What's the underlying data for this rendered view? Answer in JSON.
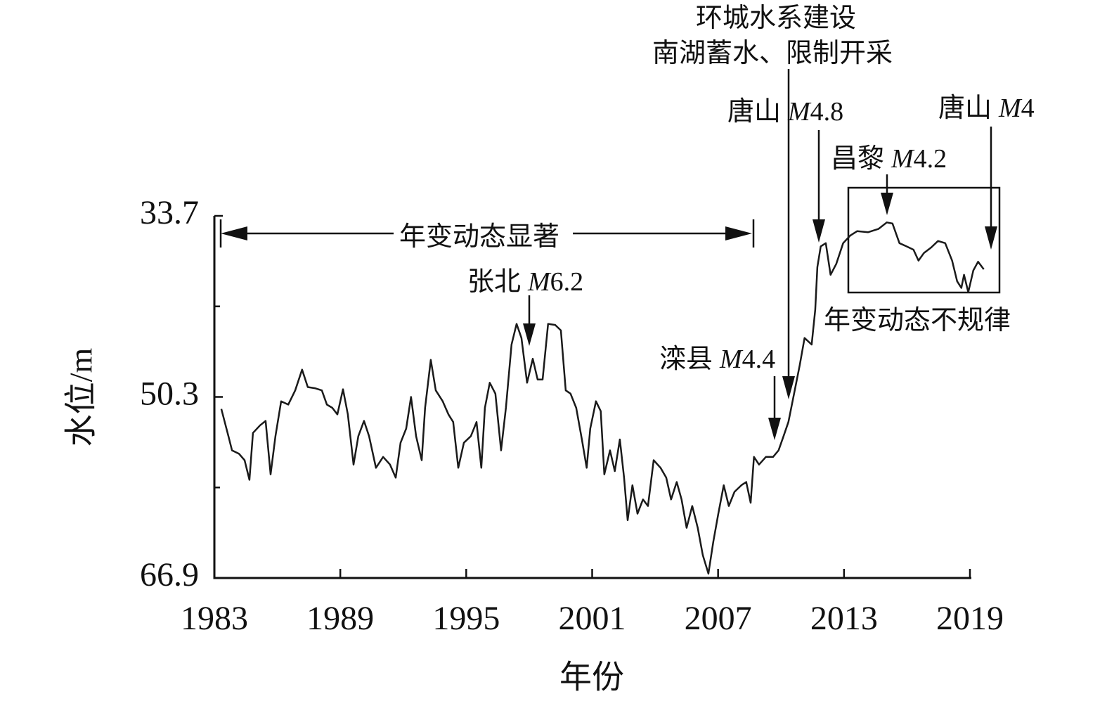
{
  "chart_data": {
    "type": "line",
    "x_label": "年份",
    "y_label": "水位/m",
    "xlim": [
      1983,
      2019
    ],
    "xticks": [
      1983,
      1989,
      1995,
      2001,
      2007,
      2013,
      2019
    ],
    "ylim": [
      33.7,
      66.9
    ],
    "y_inverted": true,
    "yticks": [
      33.7,
      50.3,
      66.9
    ],
    "y_minor_ticks": [
      42,
      58.6
    ],
    "color": "#1a1a1a",
    "x": [
      1983.33,
      1983.67,
      1983.84,
      1984.17,
      1984.44,
      1984.67,
      1984.84,
      1985.18,
      1985.44,
      1985.68,
      1985.91,
      1986.18,
      1986.52,
      1986.85,
      1987.18,
      1987.45,
      1987.79,
      1988.12,
      1988.36,
      1988.62,
      1988.86,
      1989.13,
      1989.36,
      1989.63,
      1989.86,
      1990.13,
      1990.37,
      1990.7,
      1991.04,
      1991.37,
      1991.64,
      1991.87,
      1992.14,
      1992.37,
      1992.61,
      1992.88,
      1993.04,
      1993.31,
      1993.55,
      1993.88,
      1994.15,
      1994.38,
      1994.62,
      1994.89,
      1995.22,
      1995.49,
      1995.72,
      1995.89,
      1996.12,
      1996.39,
      1996.66,
      1996.89,
      1997.16,
      1997.4,
      1997.63,
      1997.9,
      1998.17,
      1998.4,
      1998.64,
      1998.9,
      1999.24,
      1999.51,
      1999.74,
      1999.97,
      2000.24,
      2000.51,
      2000.74,
      2000.91,
      2001.18,
      2001.41,
      2001.58,
      2001.85,
      2002.08,
      2002.32,
      2002.52,
      2002.69,
      2002.92,
      2003.16,
      2003.42,
      2003.66,
      2003.93,
      2004.26,
      2004.53,
      2004.76,
      2005.03,
      2005.26,
      2005.5,
      2005.77,
      2006.03,
      2006.27,
      2006.54,
      2006.77,
      2007.01,
      2007.27,
      2007.51,
      2007.78,
      2008.11,
      2008.34,
      2008.55,
      2008.71,
      2008.95,
      2009.28,
      2009.62,
      2009.88,
      2010.12,
      2010.35,
      2010.62,
      2010.89,
      2011.12,
      2011.46,
      2011.63,
      2011.73,
      2011.89,
      2012.13,
      2012.36,
      2012.63,
      2012.96,
      2013.3,
      2013.63,
      2014.14,
      2014.64,
      2015.04,
      2015.31,
      2015.64,
      2015.98,
      2016.31,
      2016.55,
      2016.81,
      2017.15,
      2017.48,
      2017.82,
      2018.15,
      2018.39,
      2018.59,
      2018.72,
      2018.92,
      2019.16,
      2019.39,
      2019.66
    ],
    "values": [
      51.4,
      53.9,
      55.2,
      55.5,
      56.1,
      57.9,
      53.6,
      52.9,
      52.5,
      57.4,
      53.9,
      50.7,
      51.0,
      49.7,
      47.8,
      49.4,
      49.5,
      49.7,
      51.0,
      51.3,
      51.9,
      49.6,
      51.9,
      56.5,
      53.9,
      52.5,
      53.9,
      56.8,
      55.8,
      56.5,
      57.7,
      54.5,
      53.2,
      50.3,
      53.9,
      56.1,
      51.3,
      46.9,
      49.7,
      50.7,
      51.9,
      52.6,
      56.8,
      54.5,
      53.9,
      52.6,
      56.8,
      51.3,
      49.0,
      50.0,
      55.2,
      51.3,
      45.5,
      43.6,
      44.9,
      49.0,
      46.8,
      48.7,
      48.7,
      43.6,
      43.7,
      44.2,
      49.7,
      50.0,
      51.3,
      54.2,
      56.8,
      53.2,
      50.7,
      51.6,
      57.4,
      55.2,
      57.1,
      54.2,
      57.7,
      61.6,
      58.4,
      61.0,
      59.7,
      60.3,
      56.1,
      56.8,
      57.7,
      59.7,
      58.1,
      59.7,
      62.3,
      60.3,
      62.3,
      64.8,
      66.5,
      63.6,
      61.0,
      58.4,
      60.3,
      59.0,
      58.4,
      58.1,
      60.0,
      55.8,
      56.5,
      55.8,
      55.8,
      55.2,
      53.9,
      52.6,
      50.0,
      47.4,
      44.9,
      45.5,
      42.3,
      38.4,
      36.5,
      36.2,
      39.1,
      38.1,
      36.2,
      35.5,
      35.1,
      35.2,
      34.9,
      34.3,
      34.4,
      36.2,
      36.5,
      36.8,
      37.8,
      37.1,
      36.6,
      36.0,
      36.2,
      37.8,
      39.7,
      40.3,
      39.1,
      40.7,
      38.7,
      37.9,
      38.6
    ],
    "annotations": [
      {
        "text": "年变动态显著"
      },
      {
        "place": "张北",
        "magnitude": "M6.2"
      },
      {
        "place": "滦县",
        "magnitude": "M4.4"
      },
      {
        "text": "环城水系建设"
      },
      {
        "text": "南湖蓄水、限制开采"
      },
      {
        "place": "唐山",
        "magnitude": "M4.8"
      },
      {
        "place": "昌黎",
        "magnitude": "M4.2"
      },
      {
        "place": "唐山",
        "magnitude": "M4"
      },
      {
        "text": "年变动态不规律"
      }
    ]
  }
}
